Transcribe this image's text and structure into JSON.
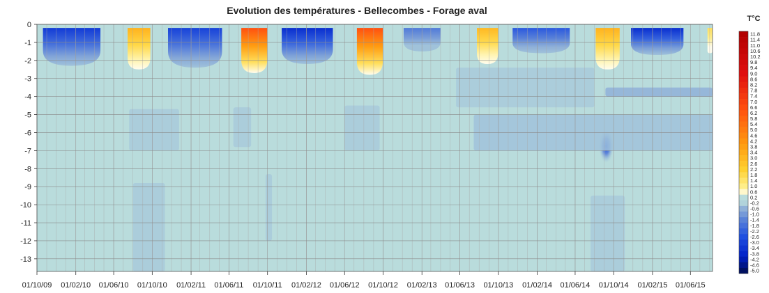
{
  "chart_data": {
    "type": "heatmap",
    "title": "Evolution des températures - Bellecombes - Forage aval",
    "xlabel": "",
    "ylabel": "",
    "x_tick_labels": [
      "01/10/09",
      "01/02/10",
      "01/06/10",
      "01/10/10",
      "01/02/11",
      "01/06/11",
      "01/10/11",
      "01/02/12",
      "01/06/12",
      "01/10/12",
      "01/02/13",
      "01/06/13",
      "01/10/13",
      "01/02/14",
      "01/06/14",
      "01/10/14",
      "01/02/15",
      "01/06/15"
    ],
    "y_tick_labels": [
      "0",
      "-1",
      "-2",
      "-3",
      "-4",
      "-5",
      "-6",
      "-7",
      "-8",
      "-9",
      "-10",
      "-11",
      "-12",
      "-13"
    ],
    "ylim": [
      -13.7,
      0
    ],
    "data_start_date": "2009-10-01",
    "data_end_date": "2015-08-10",
    "grid": true,
    "colorbar": {
      "title": "T°C",
      "ticks": [
        "11.8",
        "11.4",
        "11.0",
        "10.6",
        "10.2",
        "9.8",
        "9.4",
        "9.0",
        "8.6",
        "8.2",
        "7.8",
        "7.4",
        "7.0",
        "6.6",
        "6.2",
        "5.8",
        "5.4",
        "5.0",
        "4.6",
        "4.2",
        "3.8",
        "3.4",
        "3.0",
        "2.6",
        "2.2",
        "1.8",
        "1.4",
        "1.0",
        "0.6",
        "0.2",
        "-0.2",
        "-0.6",
        "-1.0",
        "-1.4",
        "-1.8",
        "-2.2",
        "-2.6",
        "-3.0",
        "-3.4",
        "-3.8",
        "-4.2",
        "-4.6",
        "-5.0"
      ],
      "range": [
        -5.0,
        12.0
      ],
      "colors": [
        "#001060",
        "#0020c8",
        "#2050e0",
        "#5a82d8",
        "#8fb0d8",
        "#b9dcdc",
        "#ffffff",
        "#ffee88",
        "#ffd030",
        "#ff9a10",
        "#ff5010",
        "#e01010"
      ]
    },
    "background_temp": 0.0,
    "features": [
      {
        "kind": "winter-cold",
        "start": "2009-10-20",
        "end": "2010-04-20",
        "depth_top": 0.2,
        "depth_bottom": 2.3,
        "min_temp": -3.2
      },
      {
        "kind": "winter-cold",
        "start": "2010-11-20",
        "end": "2011-05-10",
        "depth_top": 0.2,
        "depth_bottom": 2.4,
        "min_temp": -3.0
      },
      {
        "kind": "winter-cold",
        "start": "2011-11-15",
        "end": "2012-04-25",
        "depth_top": 0.2,
        "depth_bottom": 2.2,
        "min_temp": -3.6
      },
      {
        "kind": "winter-cold",
        "start": "2012-12-05",
        "end": "2013-04-01",
        "depth_top": 0.2,
        "depth_bottom": 1.5,
        "min_temp": -1.6
      },
      {
        "kind": "winter-cold",
        "start": "2013-11-15",
        "end": "2014-05-15",
        "depth_top": 0.2,
        "depth_bottom": 1.6,
        "min_temp": -2.4
      },
      {
        "kind": "winter-cold",
        "start": "2014-11-25",
        "end": "2015-05-10",
        "depth_top": 0.2,
        "depth_bottom": 1.7,
        "min_temp": -3.6
      },
      {
        "kind": "summer-warm",
        "start": "2010-07-15",
        "end": "2010-09-25",
        "depth_top": 0.2,
        "depth_bottom": 2.5,
        "max_temp": 3.2
      },
      {
        "kind": "summer-warm",
        "start": "2011-07-10",
        "end": "2011-09-30",
        "depth_top": 0.2,
        "depth_bottom": 2.7,
        "max_temp": 6.5
      },
      {
        "kind": "summer-warm",
        "start": "2012-07-10",
        "end": "2012-09-30",
        "depth_top": 0.2,
        "depth_bottom": 2.8,
        "max_temp": 6.5
      },
      {
        "kind": "summer-warm",
        "start": "2013-07-25",
        "end": "2013-09-30",
        "depth_top": 0.2,
        "depth_bottom": 2.2,
        "max_temp": 3.0
      },
      {
        "kind": "summer-warm",
        "start": "2014-08-05",
        "end": "2014-10-20",
        "depth_top": 0.2,
        "depth_bottom": 2.5,
        "max_temp": 3.2
      },
      {
        "kind": "summer-warm",
        "start": "2015-07-25",
        "end": "2015-08-10",
        "depth_top": 0.2,
        "depth_bottom": 1.6,
        "max_temp": 1.6
      },
      {
        "kind": "cold-anomaly",
        "start": "2014-08-15",
        "end": "2014-10-01",
        "depth_top": 5.8,
        "depth_bottom": 7.7,
        "min_temp": -2.6
      },
      {
        "kind": "slight-cool-zone",
        "start": "2013-07-15",
        "end": "2015-08-10",
        "depth_top": 5.0,
        "depth_bottom": 7.0,
        "temp": -0.4
      },
      {
        "kind": "slight-cool-zone",
        "start": "2010-07-20",
        "end": "2010-12-25",
        "depth_top": 4.7,
        "depth_bottom": 7.0,
        "temp": -0.3
      },
      {
        "kind": "slight-cool-zone",
        "start": "2011-06-15",
        "end": "2011-08-10",
        "depth_top": 4.6,
        "depth_bottom": 6.8,
        "temp": -0.3
      },
      {
        "kind": "slight-cool-zone",
        "start": "2012-06-01",
        "end": "2012-09-20",
        "depth_top": 4.5,
        "depth_bottom": 7.0,
        "temp": -0.3
      },
      {
        "kind": "slight-cool-zone",
        "start": "2013-05-20",
        "end": "2014-08-01",
        "depth_top": 2.4,
        "depth_bottom": 4.6,
        "temp": -0.3
      },
      {
        "kind": "slight-cool-zone",
        "start": "2014-09-05",
        "end": "2015-08-10",
        "depth_top": 3.5,
        "depth_bottom": 4.0,
        "temp": -0.6
      },
      {
        "kind": "slight-cool-zone",
        "start": "2010-08-01",
        "end": "2010-11-10",
        "depth_top": 8.8,
        "depth_bottom": 13.7,
        "temp": -0.3
      },
      {
        "kind": "slight-cool-zone",
        "start": "2014-07-20",
        "end": "2014-11-05",
        "depth_top": 9.5,
        "depth_bottom": 13.7,
        "temp": -0.3
      },
      {
        "kind": "slight-cool-zone",
        "start": "2011-09-25",
        "end": "2011-10-15",
        "depth_top": 8.3,
        "depth_bottom": 12.0,
        "temp": -0.3
      }
    ]
  }
}
